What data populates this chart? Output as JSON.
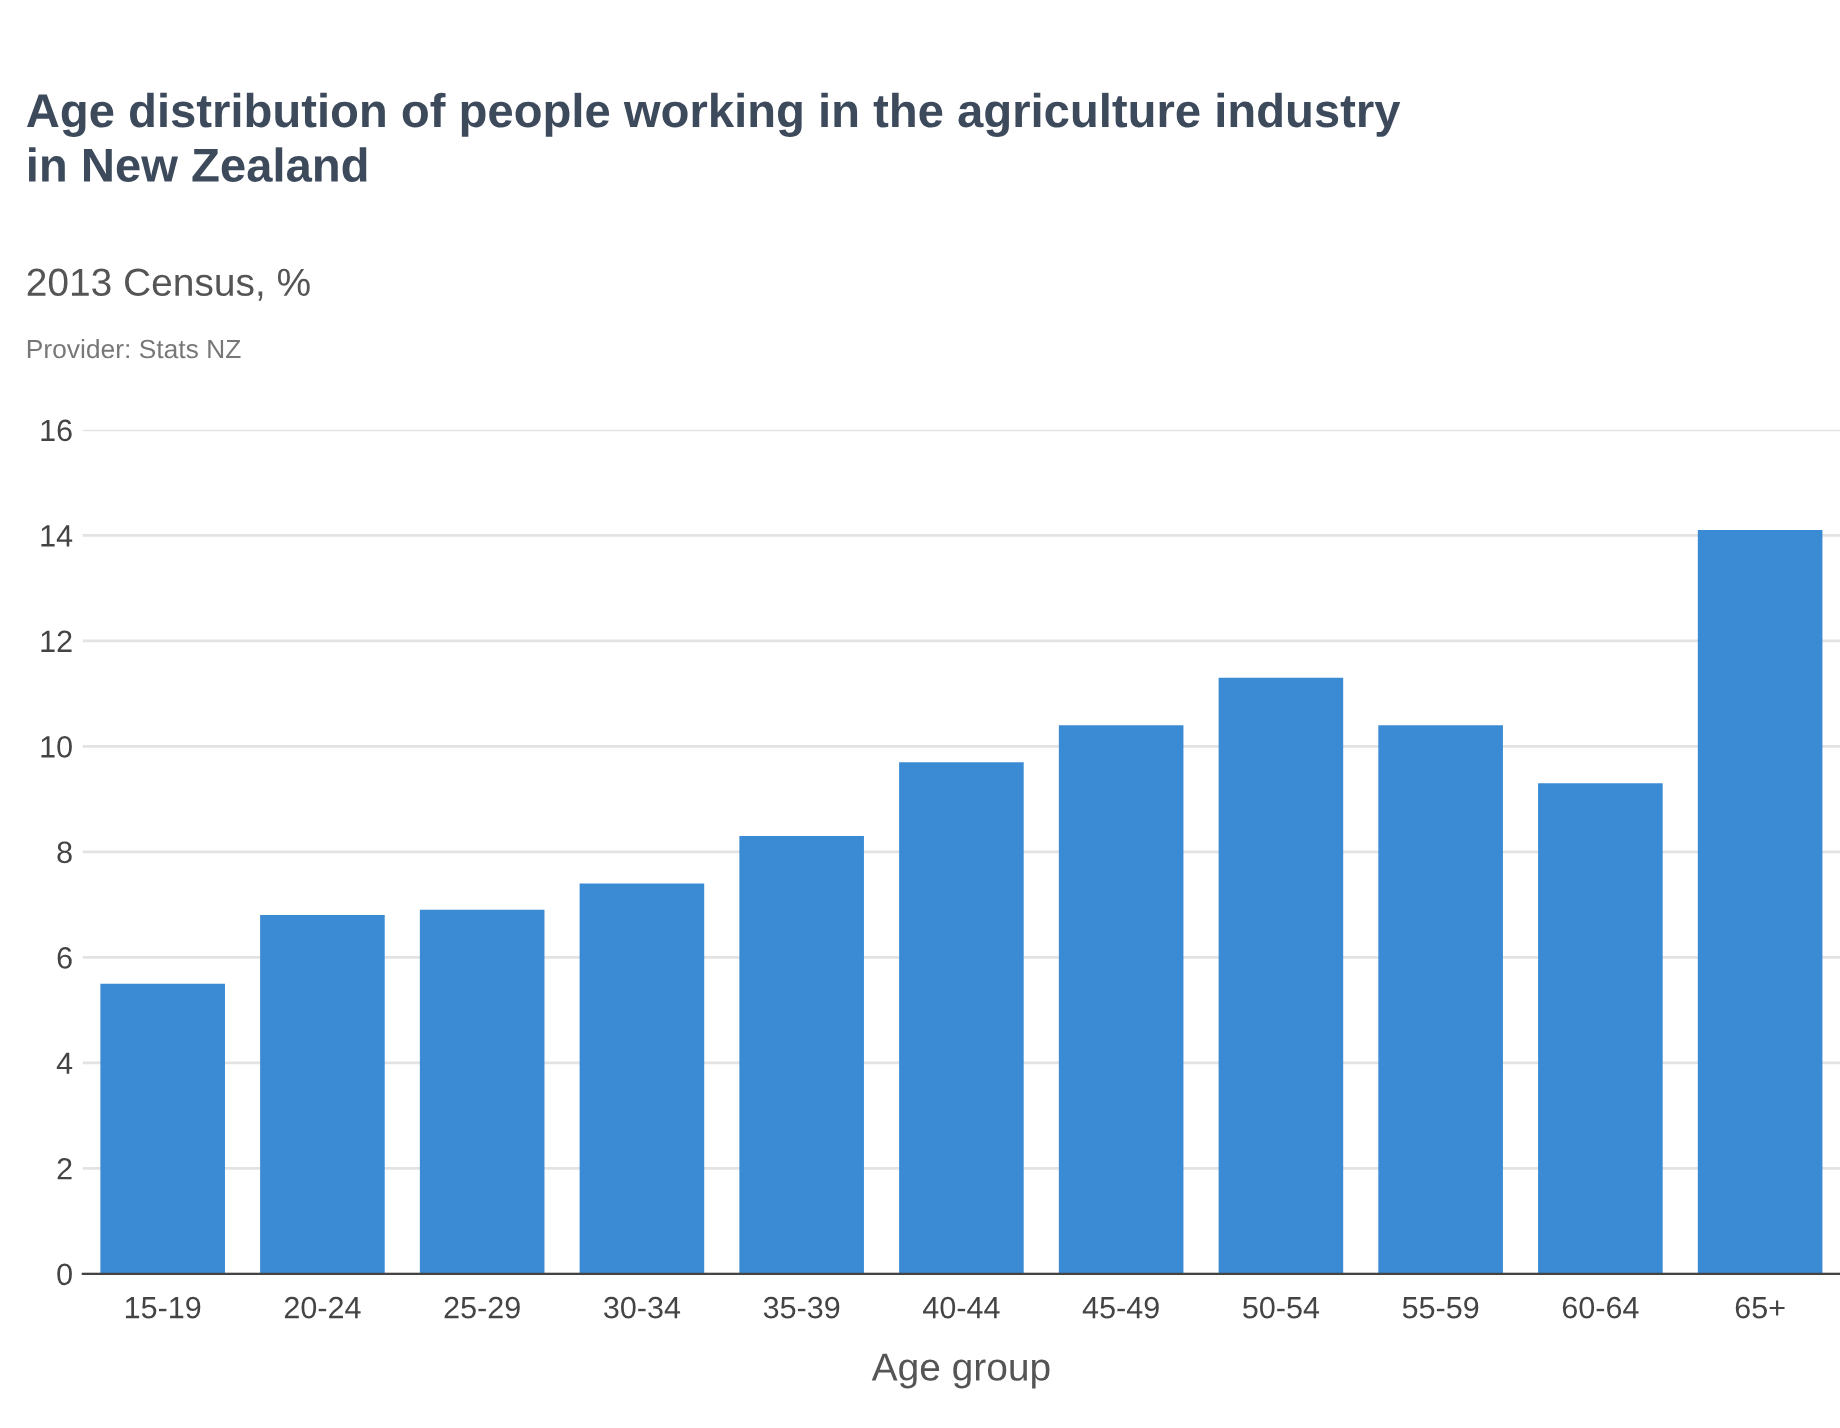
{
  "chart_data": {
    "type": "bar",
    "title": "Age distribution of people working in the agriculture industry\nin New Zealand",
    "subtitle": "2013 Census, %",
    "annotations": [
      "Provider: Stats NZ"
    ],
    "xlabel": "Age group",
    "categories": [
      "15-19",
      "20-24",
      "25-29",
      "30-34",
      "35-39",
      "40-44",
      "45-49",
      "50-54",
      "55-59",
      "60-64",
      "65+"
    ],
    "values": [
      5.5,
      6.8,
      6.9,
      7.4,
      8.3,
      9.7,
      10.4,
      11.3,
      10.4,
      9.3,
      14.1
    ],
    "color": "#3a8bd4",
    "ylim": [
      0,
      16
    ],
    "yticks": [
      0,
      2,
      4,
      6,
      8,
      10,
      12,
      14,
      16
    ],
    "grid": "y",
    "legend": false
  }
}
